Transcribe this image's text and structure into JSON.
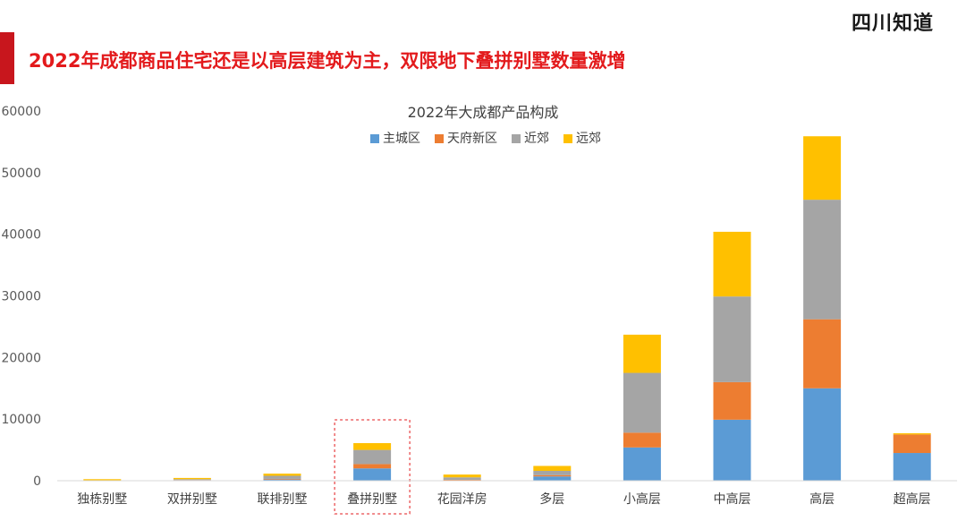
{
  "header": {
    "logo_text": "四川知道",
    "headline": "2022年成都商品住宅还是以高层建筑为主，双限地下叠拼别墅数量激增"
  },
  "colors": {
    "accent": "#c8161d",
    "headline": "#e31a1c"
  },
  "chart_data": {
    "type": "bar",
    "stacked": true,
    "title": "2022年大成都产品构成",
    "categories": [
      "独栋别墅",
      "双拼别墅",
      "联排别墅",
      "叠拼别墅",
      "花园洋房",
      "多层",
      "小高层",
      "中高层",
      "高层",
      "超高层"
    ],
    "series": [
      {
        "name": "主城区",
        "color": "#5b9bd5",
        "values": [
          0,
          50,
          200,
          2000,
          100,
          700,
          5400,
          9900,
          15000,
          4500
        ]
      },
      {
        "name": "天府新区",
        "color": "#ed7d31",
        "values": [
          0,
          50,
          100,
          700,
          50,
          200,
          2400,
          6100,
          11200,
          3000
        ]
      },
      {
        "name": "近郊",
        "color": "#a5a5a5",
        "values": [
          50,
          150,
          500,
          2300,
          400,
          700,
          9700,
          13900,
          19400,
          0
        ]
      },
      {
        "name": "远郊",
        "color": "#ffc000",
        "values": [
          200,
          200,
          350,
          1100,
          450,
          800,
          6200,
          10500,
          10300,
          200
        ]
      }
    ],
    "ylim": [
      0,
      60000
    ],
    "yticks": [
      0,
      10000,
      20000,
      30000,
      40000,
      50000,
      60000
    ],
    "grid": false,
    "legend": "top",
    "highlight_category": "叠拼别墅"
  }
}
